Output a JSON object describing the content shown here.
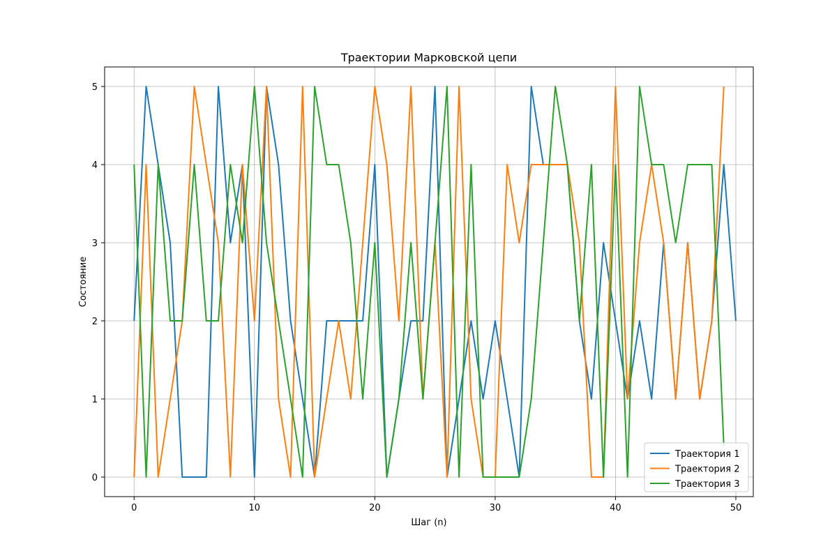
{
  "chart_data": {
    "type": "line",
    "title": "Траектории Марковской цепи",
    "xlabel": "Шаг (n)",
    "ylabel": "Состояние",
    "xlim": [
      -2.45,
      51.45
    ],
    "ylim": [
      -0.25,
      5.25
    ],
    "xticks": [
      0,
      10,
      20,
      30,
      40,
      50
    ],
    "yticks": [
      0,
      1,
      2,
      3,
      4,
      5
    ],
    "grid": true,
    "legend_position": "lower-right",
    "series": [
      {
        "name": "Траектория 1",
        "color": "#1f77b4",
        "values": [
          2,
          5,
          4,
          3,
          0,
          0,
          0,
          5,
          3,
          4,
          0,
          5,
          4,
          2,
          1,
          0,
          2,
          2,
          2,
          2,
          4,
          0,
          1,
          2,
          2,
          5,
          0,
          1,
          2,
          1,
          2,
          1,
          0,
          5,
          4,
          4,
          4,
          2,
          1,
          3,
          2,
          1,
          2,
          1,
          3,
          1,
          3,
          1,
          2,
          4,
          2
        ]
      },
      {
        "name": "Траектория 2",
        "color": "#ff7f0e",
        "values": [
          0,
          4,
          0,
          1,
          2,
          5,
          4,
          3,
          0,
          4,
          2,
          5,
          1,
          0,
          5,
          0,
          1,
          2,
          1,
          3,
          5,
          4,
          2,
          5,
          1,
          3,
          0,
          5,
          1,
          0,
          0,
          4,
          3,
          4,
          4,
          4,
          4,
          3,
          0,
          0,
          5,
          1,
          3,
          4,
          3,
          1,
          3,
          1,
          2,
          5
        ]
      },
      {
        "name": "Траектория 3",
        "color": "#2ca02c",
        "values": [
          4,
          0,
          4,
          2,
          2,
          4,
          2,
          2,
          4,
          3,
          5,
          3,
          2,
          1,
          0,
          5,
          4,
          4,
          3,
          1,
          3,
          0,
          1,
          3,
          1,
          3,
          5,
          0,
          4,
          0,
          0,
          0,
          0,
          1,
          3,
          5,
          4,
          2,
          4,
          0,
          4,
          0,
          5,
          4,
          4,
          3,
          4,
          4,
          4,
          0.4
        ]
      }
    ]
  }
}
